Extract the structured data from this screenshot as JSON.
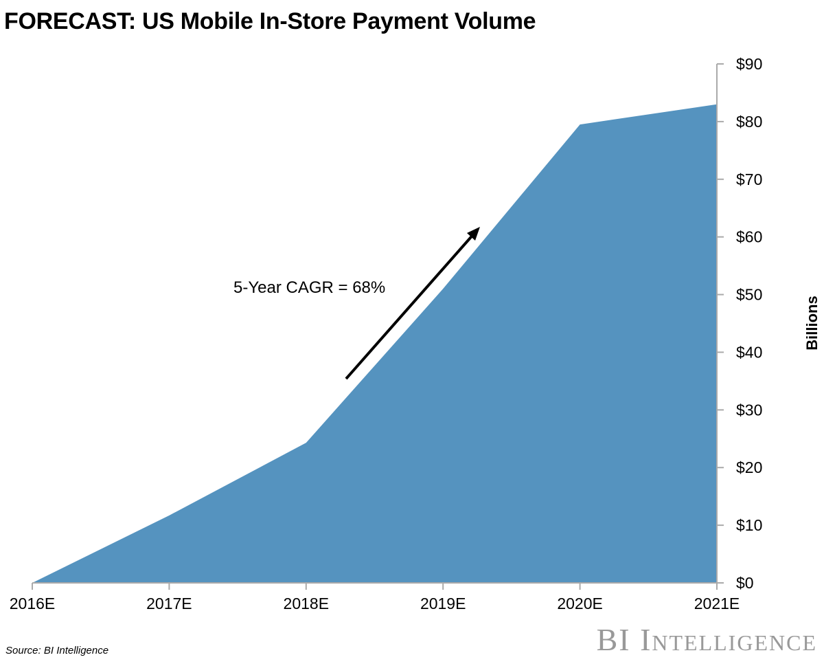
{
  "chart_data": {
    "type": "area",
    "title": "FORECAST: US Mobile In-Store Payment Volume",
    "categories": [
      "2016E",
      "2017E",
      "2018E",
      "2019E",
      "2020E",
      "2021E"
    ],
    "values": [
      0,
      11.7,
      24.3,
      51.0,
      79.5,
      83.0
    ],
    "ylabel": "Billions",
    "ylim": [
      0,
      90
    ],
    "yticks": [
      "$0",
      "$10",
      "$20",
      "$30",
      "$40",
      "$50",
      "$60",
      "$70",
      "$80",
      "$90"
    ],
    "annotation": "5-Year CAGR = 68%",
    "color": "#5593bf",
    "grid": false,
    "y_axis_side": "right"
  },
  "source": "Source: BI Intelligence",
  "logo": "BI Intelligence"
}
